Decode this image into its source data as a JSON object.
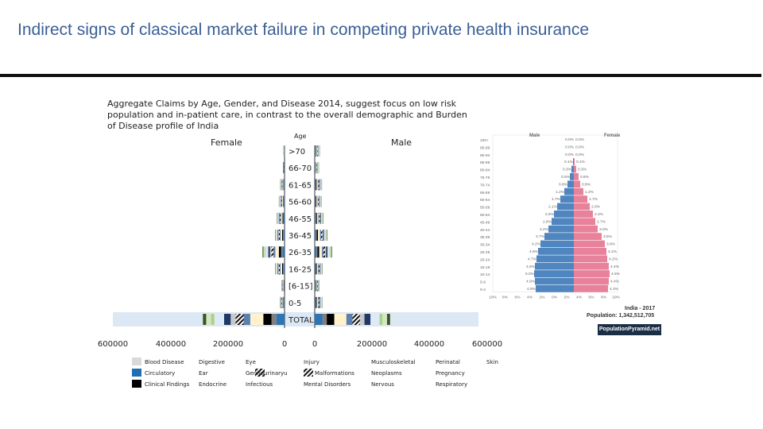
{
  "slide": {
    "title": "Indirect signs of classical market failure in competing private health insurance"
  },
  "caption": "Aggregate Claims by Age, Gender, and Disease 2014, suggest focus on low risk population and in-patient care, in contrast to the overall demographic and Burden of Disease profile of India",
  "colors": {
    "title": "#3a5f95",
    "male_pyramid": "#4f86c0",
    "female_pyramid": "#e8829a",
    "badge": "#1a2e45"
  },
  "chart_data": [
    {
      "type": "bar",
      "orientation": "horizontal-diverging",
      "stacked": true,
      "left_label": "Female",
      "right_label": "Male",
      "center_label": "Age",
      "categories": [
        ">70",
        "66-70",
        "61-65",
        "56-60",
        "46-55",
        "36-45",
        "26-35",
        "16-25",
        "[6-15]",
        "0-5",
        "TOTAL"
      ],
      "x_ticks_left": [
        "600000",
        "400000",
        "200000",
        "0"
      ],
      "x_ticks_right": [
        "0",
        "200000",
        "400000",
        "600000"
      ],
      "xlim": [
        -600000,
        600000
      ],
      "total_row_scale_note": "",
      "legend": [
        "Blood Disease",
        "Circulatory",
        "Clinical Findings",
        "Digestive",
        "Ear",
        "Endocrine",
        "Eye",
        "Genitourinary",
        "Infectious",
        "Injury",
        "Malformations",
        "Mental Disorders",
        "Musculoskeletal",
        "Neoplasms",
        "Nervous",
        "Perinatal",
        "Pregnancy",
        "Respiratory",
        "Skin"
      ],
      "legend_display": [
        "Blood Disease",
        "Circulatory",
        "Clinical Findings",
        "Digestive",
        "Ear",
        "Endocrine",
        "Eye",
        "Genitourinaryu",
        "Infectious",
        "Injury",
        "Malformations",
        "Mental Disorders",
        "Musculoskeletal",
        "Neoplasms",
        "Nervous",
        "Perinatal",
        "Pregnancy",
        "Respiratory",
        "Skin"
      ],
      "legend_colors": [
        "#d9d9d9",
        "#1f6fb5",
        "#000000",
        "#5b7fae",
        "#9dc3e6",
        "#a9d18e",
        "#c9c9c9",
        "#ffffff",
        "#1f3864",
        "#2e75b6",
        "#555555",
        "#bdd7ee",
        "#deebf7",
        "#dae3f3",
        "#7f7f7f",
        "#a5a5a5",
        "#d6e6c3",
        "#fff2cc",
        "#375623"
      ],
      "female_totals": [
        3000,
        5000,
        14000,
        18000,
        25000,
        30000,
        70000,
        30000,
        10000,
        15000,
        260000
      ],
      "male_totals": [
        16000,
        13000,
        23000,
        22000,
        28000,
        40000,
        55000,
        25000,
        15000,
        24000,
        240000
      ],
      "segments_order": [
        "Circulatory",
        "Nervous",
        "Clinical Findings",
        "Respiratory",
        "Digestive",
        "Malformations",
        "Eye",
        "Injury",
        "Musculoskeletal",
        "Skin",
        "Pregnancy",
        "Infectious"
      ]
    },
    {
      "type": "bar",
      "orientation": "horizontal-diverging",
      "legend": [
        "Male",
        "Female"
      ],
      "categories": [
        "100+",
        "95-99",
        "90-94",
        "85-89",
        "80-84",
        "75-79",
        "70-74",
        "65-69",
        "60-64",
        "55-59",
        "50-54",
        "45-49",
        "40-44",
        "35-39",
        "30-34",
        "25-29",
        "20-24",
        "15-19",
        "10-14",
        "5-9",
        "0-4"
      ],
      "male_pct": [
        0.0,
        0.0,
        0.0,
        0.1,
        0.3,
        0.5,
        0.8,
        1.2,
        1.7,
        2.1,
        2.5,
        2.8,
        3.2,
        3.7,
        4.2,
        4.5,
        4.7,
        4.9,
        5.0,
        4.9,
        4.8
      ],
      "female_pct": [
        0.0,
        0.0,
        0.0,
        0.1,
        0.3,
        0.6,
        0.8,
        1.2,
        1.7,
        2.0,
        2.4,
        2.7,
        3.0,
        3.5,
        3.9,
        4.1,
        4.2,
        4.4,
        4.5,
        4.4,
        4.3
      ],
      "male_labels": [
        "0.0%",
        "0.0%",
        "0.0%",
        "0.1%",
        "0.3%",
        "0.5%",
        "0.8%",
        "1.2%",
        "1.7%",
        "2.1%",
        "2.5%",
        "2.8%",
        "3.2%",
        "3.7%",
        "4.2%",
        "4.5%",
        "4.7%",
        "4.9%",
        "5.0%",
        "4.9%",
        "4.8%"
      ],
      "female_labels": [
        "0.0%",
        "0.0%",
        "0.0%",
        "0.1%",
        "0.3%",
        "0.6%",
        "0.8%",
        "1.2%",
        "1.7%",
        "2.0%",
        "2.4%",
        "2.7%",
        "3.0%",
        "3.5%",
        "3.9%",
        "4.1%",
        "4.2%",
        "4.4%",
        "4.5%",
        "4.4%",
        "4.3%"
      ],
      "x_ticks": [
        "10%",
        "8%",
        "6%",
        "4%",
        "2%",
        "0%",
        "2%",
        "4%",
        "6%",
        "8%",
        "10%"
      ],
      "title": "India - 2017",
      "population": "Population: 1,342,512,705",
      "source_badge": "PopulationPyramid.net"
    }
  ]
}
